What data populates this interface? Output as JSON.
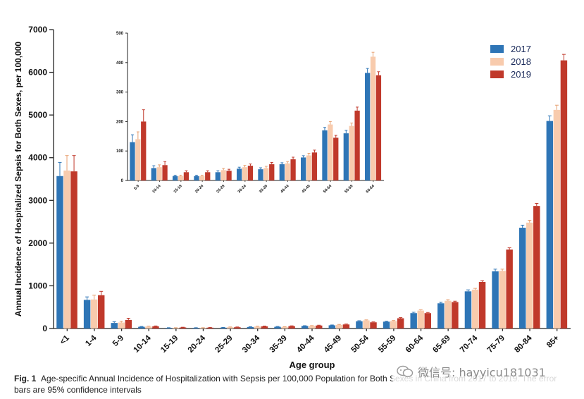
{
  "chart_data": [
    {
      "type": "bar",
      "id": "main",
      "categories": [
        "<1",
        "1-4",
        "5-9",
        "10-14",
        "15-19",
        "20-24",
        "25-29",
        "30-34",
        "35-39",
        "40-44",
        "45-49",
        "50-54",
        "55-59",
        "60-64",
        "65-69",
        "70-74",
        "75-79",
        "80-84",
        "85+"
      ],
      "series": [
        {
          "name": "2017",
          "color": "#2e75b6",
          "values": [
            3570,
            670,
            130,
            40,
            15,
            15,
            20,
            35,
            40,
            60,
            75,
            170,
            160,
            360,
            590,
            870,
            1340,
            2360,
            4860
          ],
          "err": [
            320,
            70,
            30,
            8,
            4,
            4,
            5,
            6,
            8,
            6,
            8,
            12,
            12,
            20,
            25,
            35,
            50,
            60,
            120
          ]
        },
        {
          "name": "2018",
          "color": "#f8cbad",
          "values": [
            3700,
            680,
            140,
            45,
            15,
            15,
            30,
            45,
            35,
            60,
            85,
            190,
            175,
            420,
            650,
            910,
            1350,
            2480,
            5120
          ],
          "err": [
            350,
            100,
            30,
            10,
            4,
            4,
            6,
            8,
            6,
            8,
            10,
            12,
            12,
            20,
            25,
            30,
            40,
            55,
            110
          ]
        },
        {
          "name": "2019",
          "color": "#c0392b",
          "values": [
            3680,
            780,
            200,
            50,
            25,
            20,
            30,
            50,
            55,
            70,
            95,
            145,
            240,
            360,
            620,
            1090,
            1850,
            2870,
            6280
          ],
          "err": [
            370,
            90,
            40,
            10,
            5,
            4,
            6,
            8,
            8,
            8,
            10,
            10,
            15,
            15,
            20,
            30,
            40,
            60,
            140
          ]
        }
      ],
      "xlabel": "Age group",
      "ylabel": "Annual Incidence of Hospitalized Sepsis for Both Sexes, per 100,000",
      "ylim": [
        0,
        7000
      ],
      "yticks": [
        0,
        1000,
        2000,
        3000,
        4000,
        5000,
        6000,
        7000
      ],
      "legend": "top-right",
      "grid": false
    },
    {
      "type": "bar",
      "id": "inset",
      "categories": [
        "5-9",
        "10-14",
        "15-19",
        "20-24",
        "25-29",
        "30-34",
        "35-39",
        "40-44",
        "45-49",
        "50-54",
        "55-59",
        "60-64"
      ],
      "series": [
        {
          "name": "2017",
          "color": "#2e75b6",
          "values": [
            130,
            42,
            15,
            15,
            28,
            40,
            38,
            55,
            78,
            170,
            160,
            365
          ],
          "err": [
            25,
            8,
            3,
            3,
            5,
            5,
            5,
            5,
            6,
            10,
            10,
            15
          ]
        },
        {
          "name": "2018",
          "color": "#f8cbad",
          "values": [
            140,
            45,
            15,
            15,
            35,
            45,
            42,
            58,
            85,
            190,
            185,
            420
          ],
          "err": [
            25,
            8,
            3,
            3,
            6,
            6,
            6,
            6,
            7,
            10,
            10,
            15
          ]
        },
        {
          "name": "2019",
          "color": "#c0392b",
          "values": [
            200,
            52,
            28,
            28,
            33,
            50,
            55,
            72,
            95,
            145,
            237,
            357
          ],
          "err": [
            40,
            12,
            5,
            5,
            5,
            6,
            6,
            7,
            8,
            8,
            12,
            12
          ]
        }
      ],
      "ylim": [
        0,
        500
      ],
      "yticks": [
        0,
        100,
        200,
        300,
        400,
        500
      ],
      "grid": false
    }
  ],
  "legend_labels": [
    "2017",
    "2018",
    "2019"
  ],
  "caption": {
    "label": "Fig. 1",
    "text": "Age-specific Annual Incidence of Hospitalization with Sepsis per 100,000 Population for Both Sexes in China from 2017 to 2019. The error bars are 95% confidence intervals"
  },
  "watermark": {
    "text": "微信号: hayyicu181031",
    "icon": "wechat-icon"
  }
}
